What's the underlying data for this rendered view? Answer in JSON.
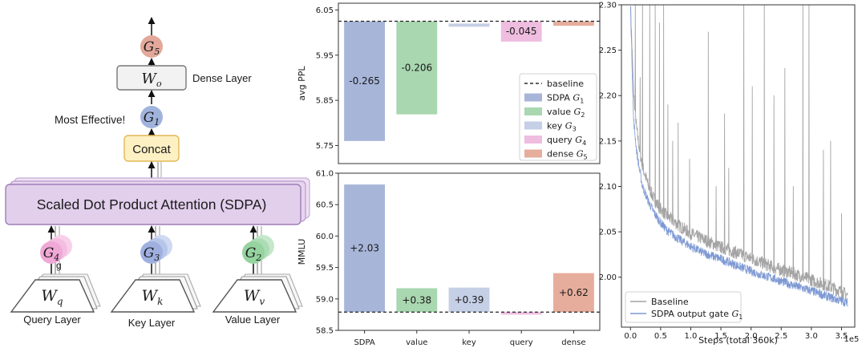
{
  "diagram": {
    "g5": {
      "sym": "G",
      "sub": "5",
      "color": "#e3a89a"
    },
    "wo": {
      "sym": "W",
      "sub": "o"
    },
    "dense_label": "Dense Layer",
    "most_effective": "Most Effective!",
    "g1": {
      "sym": "G",
      "sub": "1",
      "color": "#9fb3dc"
    },
    "concat": "Concat",
    "sdpa": "Scaled Dot Product Attention (SDPA)",
    "g4": {
      "sym": "G",
      "sub": "4",
      "color": "#f0a8d6"
    },
    "g4_extra": "g",
    "g3": {
      "sym": "G",
      "sub": "3",
      "color": "#9fb0e0"
    },
    "g2": {
      "sym": "G",
      "sub": "2",
      "color": "#95d39f"
    },
    "wq": {
      "sym": "W",
      "sub": "q"
    },
    "wk": {
      "sym": "W",
      "sub": "k"
    },
    "wv": {
      "sym": "W",
      "sub": "v"
    },
    "query_layer": "Query Layer",
    "key_layer": "Key Layer",
    "value_layer": "Value Layer"
  },
  "chart_data": [
    {
      "type": "bar",
      "ylabel": "avg PPL",
      "ylim": [
        5.71,
        6.065
      ],
      "yticks": [
        "5.75",
        "5.85",
        "5.95",
        "6.05"
      ],
      "baseline": 6.025,
      "bars": [
        {
          "label": "-0.265",
          "bottom": 5.76,
          "top": 6.025,
          "color": "#a7b5d9"
        },
        {
          "label": "-0.206",
          "bottom": 5.819,
          "top": 6.025,
          "color": "#a9d7b0"
        },
        {
          "label": "",
          "bottom": 6.013,
          "top": 6.02,
          "color": "#c5cfe6"
        },
        {
          "label": "-0.045",
          "bottom": 5.98,
          "top": 6.025,
          "color": "#efbde0"
        },
        {
          "label": "",
          "bottom": 6.015,
          "top": 6.025,
          "color": "#e6ad9c"
        }
      ],
      "legend": {
        "placement": "center-right",
        "items": [
          {
            "text": "baseline",
            "sym": "",
            "sub": "",
            "style": "dashed",
            "color": "#000000"
          },
          {
            "text": "SDPA ",
            "sym": "G",
            "sub": "1",
            "style": "patch",
            "color": "#a7b5d9"
          },
          {
            "text": "value ",
            "sym": "G",
            "sub": "2",
            "style": "patch",
            "color": "#a9d7b0"
          },
          {
            "text": "key ",
            "sym": "G",
            "sub": "3",
            "style": "patch",
            "color": "#c5cfe6"
          },
          {
            "text": "query ",
            "sym": "G",
            "sub": "4",
            "style": "patch",
            "color": "#efbde0"
          },
          {
            "text": "dense ",
            "sym": "G",
            "sub": "5",
            "style": "patch",
            "color": "#e6ad9c"
          }
        ]
      }
    },
    {
      "type": "bar",
      "ylabel": "MMLU",
      "ylim": [
        58.5,
        61.0
      ],
      "yticks": [
        "58.5",
        "59.0",
        "59.5",
        "60.0",
        "60.5",
        "61.0"
      ],
      "baseline": 58.79,
      "categories": [
        "SDPA",
        "value",
        "key",
        "query",
        "dense"
      ],
      "bars": [
        {
          "label": "+2.03",
          "bottom": 58.79,
          "top": 60.82,
          "color": "#a7b5d9"
        },
        {
          "label": "+0.38",
          "bottom": 58.79,
          "top": 59.17,
          "color": "#a9d7b0"
        },
        {
          "label": "+0.39",
          "bottom": 58.79,
          "top": 59.18,
          "color": "#c5cfe6"
        },
        {
          "label": "",
          "bottom": 58.75,
          "top": 58.79,
          "color": "#efbde0"
        },
        {
          "label": "+0.62",
          "bottom": 58.79,
          "top": 59.41,
          "color": "#e6ad9c"
        }
      ]
    },
    {
      "type": "line",
      "xlabel": "Steps (total 360k)",
      "x_multiplier_label": "1e5",
      "xlim": [
        -0.15,
        3.72
      ],
      "ylim": [
        1.945,
        2.3
      ],
      "xticks": [
        "0.0",
        "0.5",
        "1.0",
        "1.5",
        "2.0",
        "2.5",
        "3.0",
        "3.5"
      ],
      "yticks": [
        "2.00",
        "2.05",
        "2.10",
        "2.15",
        "2.20",
        "2.25",
        "2.30"
      ],
      "legend_placement": "lower-left",
      "series": [
        {
          "name": "Baseline",
          "sym": "",
          "sub": "",
          "color": "#a4a4a4",
          "noise": 0.007,
          "x": [
            0.0,
            0.05,
            0.1,
            0.15,
            0.2,
            0.3,
            0.4,
            0.5,
            0.6,
            0.8,
            1.0,
            1.2,
            1.5,
            1.8,
            2.1,
            2.4,
            2.7,
            3.0,
            3.3,
            3.5,
            3.6
          ],
          "y": [
            2.3,
            2.205,
            2.165,
            2.14,
            2.122,
            2.1,
            2.085,
            2.075,
            2.068,
            2.057,
            2.048,
            2.042,
            2.033,
            2.026,
            2.018,
            2.01,
            2.004,
            1.997,
            1.99,
            1.984,
            1.98
          ],
          "spikes": [
            {
              "x": 0.08,
              "y": 2.3
            },
            {
              "x": 0.16,
              "y": 2.21
            },
            {
              "x": 0.2,
              "y": 2.3
            },
            {
              "x": 0.32,
              "y": 2.3
            },
            {
              "x": 0.41,
              "y": 2.3
            },
            {
              "x": 0.48,
              "y": 2.27
            },
            {
              "x": 0.55,
              "y": 2.3
            },
            {
              "x": 0.62,
              "y": 2.18
            },
            {
              "x": 0.7,
              "y": 2.14
            },
            {
              "x": 0.79,
              "y": 2.16
            },
            {
              "x": 0.98,
              "y": 2.12
            },
            {
              "x": 1.29,
              "y": 2.26
            },
            {
              "x": 1.42,
              "y": 2.09
            },
            {
              "x": 1.56,
              "y": 2.17
            },
            {
              "x": 1.63,
              "y": 2.11
            },
            {
              "x": 1.88,
              "y": 2.3
            },
            {
              "x": 2.02,
              "y": 2.2
            },
            {
              "x": 2.22,
              "y": 2.3
            },
            {
              "x": 2.38,
              "y": 2.19
            },
            {
              "x": 2.56,
              "y": 2.22
            },
            {
              "x": 2.7,
              "y": 2.09
            },
            {
              "x": 2.86,
              "y": 2.3
            },
            {
              "x": 2.96,
              "y": 2.3
            },
            {
              "x": 3.2,
              "y": 2.13
            },
            {
              "x": 3.32,
              "y": 2.14
            },
            {
              "x": 3.5,
              "y": 2.06
            }
          ]
        },
        {
          "name": "SDPA output gate ",
          "sym": "G",
          "sub": "1",
          "color": "#7d99d4",
          "noise": 0.005,
          "x": [
            0.0,
            0.05,
            0.1,
            0.15,
            0.2,
            0.3,
            0.4,
            0.5,
            0.6,
            0.8,
            1.0,
            1.2,
            1.5,
            1.8,
            2.1,
            2.4,
            2.7,
            3.0,
            3.3,
            3.5,
            3.6
          ],
          "y": [
            2.3,
            2.175,
            2.14,
            2.118,
            2.1,
            2.083,
            2.07,
            2.06,
            2.052,
            2.042,
            2.034,
            2.027,
            2.02,
            2.012,
            2.004,
            1.998,
            1.991,
            1.985,
            1.978,
            1.974,
            1.972
          ],
          "spikes": []
        }
      ]
    }
  ]
}
